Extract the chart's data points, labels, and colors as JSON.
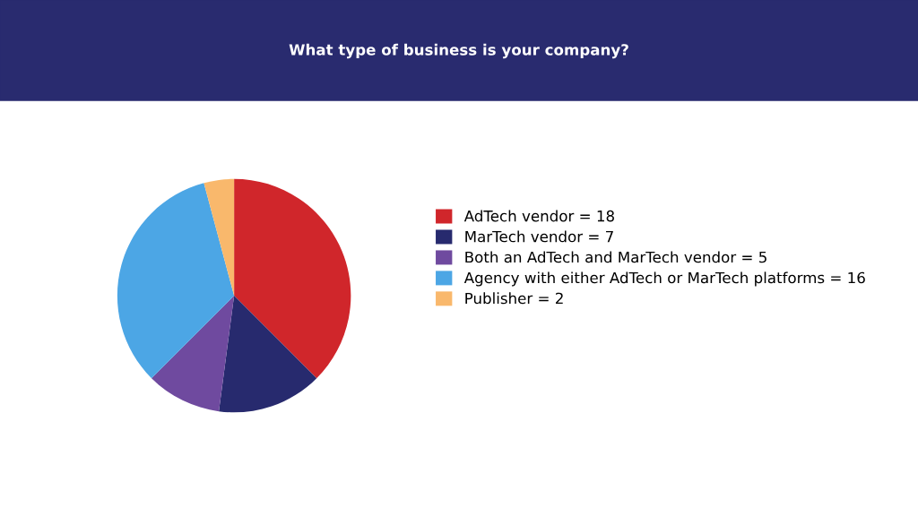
{
  "chart_data": {
    "type": "pie",
    "title": "What type of business is your company?",
    "categories": [
      "AdTech vendor = 18",
      "MarTech vendor = 7",
      "Both an AdTech and MarTech vendor = 5",
      "Agency with either AdTech or MarTech platforms = 16",
      "Publisher = 2"
    ],
    "values": [
      18,
      7,
      5,
      16,
      2
    ],
    "colors": [
      "#d0262b",
      "#272a6e",
      "#6f4a9f",
      "#4ca6e5",
      "#f9b86c"
    ],
    "legend": "right"
  }
}
